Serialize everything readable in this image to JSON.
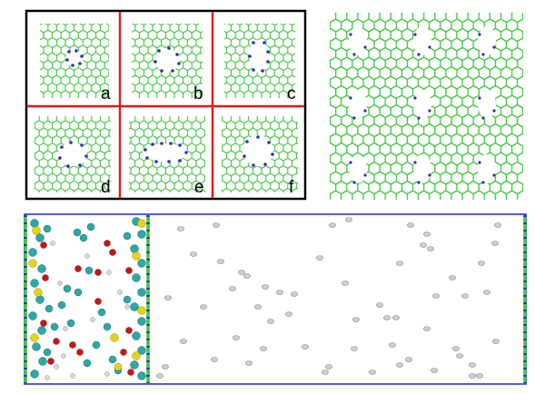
{
  "panels": {
    "labels": [
      "a",
      "b",
      "c",
      "d",
      "e",
      "f"
    ]
  },
  "colors": {
    "graphene": "#3ec33e",
    "passivation": "#3030b8",
    "grid_frame": "#000000",
    "grid_divider": "#e01818",
    "sim_box": "#3a4be0",
    "gas_molecule": "#d0d0d0",
    "water_cyan": "#2ea7a5",
    "sulfur": "#e6d21a",
    "oxygen": "#c41818"
  },
  "layout_descriptions": {
    "top_left": "grid-of-pore-variants",
    "top_right": "periodic-membrane-sheet",
    "bottom": "simulation-cell"
  }
}
